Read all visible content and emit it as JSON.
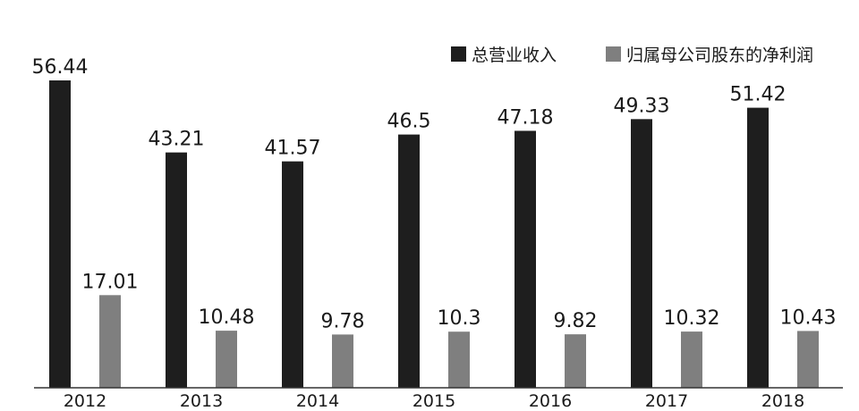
{
  "chart_data": {
    "type": "bar",
    "categories": [
      "2012",
      "2013",
      "2014",
      "2015",
      "2016",
      "2017",
      "2018"
    ],
    "series": [
      {
        "name": "总营业收入",
        "color": "#1e1e1e",
        "values": [
          56.44,
          43.21,
          41.57,
          46.5,
          47.18,
          49.33,
          51.42
        ],
        "labels": [
          "56.44",
          "43.21",
          "41.57",
          "46.5",
          "47.18",
          "49.33",
          "51.42"
        ]
      },
      {
        "name": "归属母公司股东的净利润",
        "color": "#7f7f7f",
        "values": [
          17.01,
          10.48,
          9.78,
          10.3,
          9.82,
          10.32,
          10.43
        ],
        "labels": [
          "17.01",
          "10.48",
          "9.78",
          "10.3",
          "9.82",
          "10.32",
          "10.43"
        ]
      }
    ],
    "ylim": [
      0,
      63
    ],
    "grid": false,
    "legend_position": "top-right",
    "axis_color": "#333333"
  }
}
